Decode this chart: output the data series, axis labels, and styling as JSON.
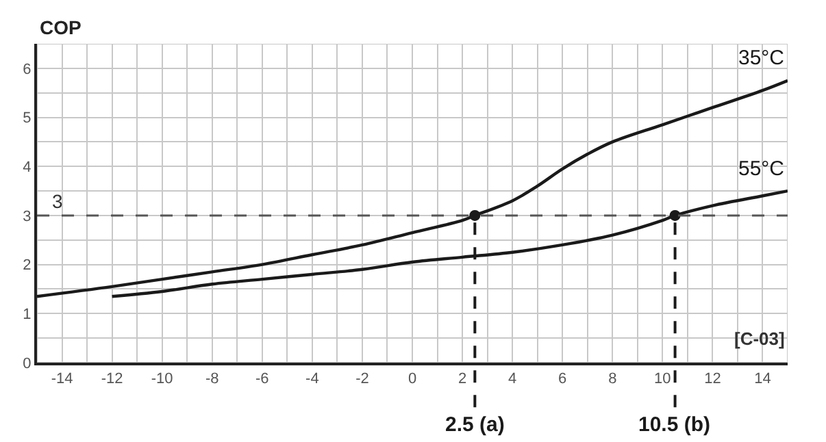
{
  "chart_data": {
    "type": "line",
    "xlabel": "[C-03]",
    "ylabel": "COP",
    "x": [
      -15,
      -12,
      -10,
      -8,
      -6,
      -4,
      -2,
      0,
      2,
      2.5,
      4,
      5,
      6,
      7,
      8,
      10,
      12,
      14,
      15
    ],
    "series": [
      {
        "name": "35°C",
        "color": "#1a1a1a",
        "values": [
          1.35,
          1.55,
          1.7,
          1.85,
          2.0,
          2.2,
          2.4,
          2.65,
          2.9,
          3.0,
          3.3,
          3.6,
          3.95,
          4.25,
          4.5,
          4.85,
          5.2,
          5.55,
          5.75
        ]
      },
      {
        "name": "55°C",
        "color": "#1a1a1a",
        "x": [
          -12,
          -10,
          -8,
          -6,
          -4,
          -2,
          0,
          2,
          4,
          6,
          8,
          10,
          10.5,
          12,
          14,
          15
        ],
        "values": [
          1.35,
          1.45,
          1.6,
          1.7,
          1.8,
          1.9,
          2.05,
          2.15,
          2.25,
          2.4,
          2.6,
          2.9,
          3.0,
          3.2,
          3.4,
          3.5
        ]
      },
      {
        "type": "scatter",
        "color": "#1a1a1a",
        "marker": "circle",
        "x": [
          2.5,
          10.5
        ],
        "values": [
          3,
          3
        ]
      }
    ],
    "xlim": [
      -15,
      15
    ],
    "ylim": [
      0,
      6.5
    ],
    "xticks": [
      {
        "value": -15,
        "label": null
      },
      -14,
      {
        "value": -13,
        "label": null
      },
      -12,
      {
        "value": -11,
        "label": null
      },
      -10,
      {
        "value": -9,
        "label": null
      },
      -8,
      {
        "value": -7,
        "label": null
      },
      -6,
      {
        "value": -5,
        "label": null
      },
      -4,
      {
        "value": -3,
        "label": null
      },
      -2,
      {
        "value": -1,
        "label": null
      },
      0,
      {
        "value": 1,
        "label": null
      },
      2,
      {
        "value": 3,
        "label": null
      },
      4,
      {
        "value": 5,
        "label": null
      },
      6,
      {
        "value": 7,
        "label": null
      },
      8,
      {
        "value": 9,
        "label": null
      },
      10,
      {
        "value": 11,
        "label": null
      },
      12,
      {
        "value": 13,
        "label": null
      },
      14,
      {
        "value": 15,
        "label": null
      }
    ],
    "yticks": [
      0,
      {
        "value": 0.5,
        "label": null
      },
      1,
      {
        "value": 1.5,
        "label": null
      },
      2,
      {
        "value": 2.5,
        "label": null
      },
      3,
      {
        "value": 3.5,
        "label": null
      },
      4,
      {
        "value": 4.5,
        "label": null
      },
      5,
      {
        "value": 5.5,
        "label": null
      },
      6,
      {
        "value": 6.5,
        "label": null
      }
    ],
    "grid": true,
    "marker": "none",
    "line_style": "solid",
    "ref_lines": [
      {
        "axis": "y",
        "value": 3,
        "label": "3",
        "color": "#555555",
        "line_style": "dashed"
      },
      {
        "axis": "x",
        "value": 2.5,
        "label": "2.5 (a)",
        "color": "#1a1a1a",
        "line_style": "dashed"
      },
      {
        "axis": "x",
        "value": 10.5,
        "label": "10.5 (b)",
        "color": "#1a1a1a",
        "line_style": "dashed"
      }
    ]
  }
}
